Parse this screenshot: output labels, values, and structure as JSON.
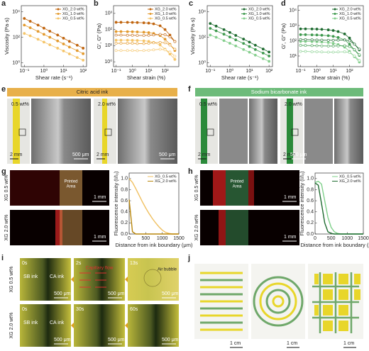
{
  "chart_data": [
    {
      "type": "line",
      "xscale": "log",
      "yscale": "log",
      "xlabel": "Shear rate (s⁻¹)",
      "ylabel": "Viscosity (Pa·s)",
      "legend": "upper right",
      "x": [
        0.1,
        0.2,
        0.5,
        1,
        2,
        5,
        10,
        20,
        50,
        100
      ],
      "xlim": [
        0.07,
        150
      ],
      "xticks": [
        {
          "value": 0.1,
          "label": "10⁻¹"
        },
        {
          "value": 1,
          "label": "10⁰"
        },
        {
          "value": 10,
          "label": "10¹"
        },
        {
          "value": 100,
          "label": "10²"
        }
      ],
      "ylim": [
        0.5,
        30000
      ],
      "yticks": [
        {
          "value": 1,
          "label": "10⁰"
        },
        {
          "value": 100,
          "label": "10²"
        },
        {
          "value": 10000,
          "label": "10⁴"
        }
      ],
      "series": [
        {
          "name": "XG_2.0 wt%",
          "color": "#c0650f",
          "marker": "filled",
          "values": [
            3000,
            1800,
            900,
            520,
            300,
            150,
            85,
            48,
            24,
            14
          ]
        },
        {
          "name": "XG_1.0 wt%",
          "color": "#e39a2e",
          "marker": "filled",
          "values": [
            900,
            560,
            290,
            170,
            100,
            52,
            30,
            17,
            9,
            5.2
          ]
        },
        {
          "name": "XG_0.5 wt%",
          "color": "#f5c56a",
          "marker": "filled",
          "values": [
            200,
            130,
            70,
            42,
            26,
            14,
            8.5,
            5,
            2.6,
            1.6
          ]
        }
      ]
    },
    {
      "type": "line",
      "xscale": "log",
      "yscale": "log",
      "xlabel": "Shear strain (%)",
      "ylabel": "G′, G″ (Pa)",
      "legend": "upper right",
      "x": [
        0.1,
        0.2,
        0.5,
        1,
        2,
        5,
        10,
        20,
        50,
        100,
        200,
        400
      ],
      "xlim": [
        0.07,
        700
      ],
      "xticks": [
        {
          "value": 0.1,
          "label": "10⁻¹"
        },
        {
          "value": 1,
          "label": "10⁰"
        },
        {
          "value": 10,
          "label": "10¹"
        },
        {
          "value": 100,
          "label": "10²"
        }
      ],
      "ylim": [
        0.5,
        3000
      ],
      "yticks": [
        {
          "value": 1,
          "label": "10⁰"
        },
        {
          "value": 10,
          "label": "10¹"
        },
        {
          "value": 100,
          "label": "10²"
        },
        {
          "value": 1000,
          "label": "10³"
        }
      ],
      "series": [
        {
          "name": "XG_2.0 wt%",
          "color": "#c0650f",
          "marker": "filled",
          "values": [
            280,
            280,
            278,
            275,
            270,
            262,
            250,
            225,
            170,
            100,
            45,
            18
          ]
        },
        {
          "name": "XG_1.0 wt%",
          "color": "#e39a2e",
          "marker": "filled",
          "values": [
            75,
            75,
            74,
            73,
            71,
            68,
            64,
            57,
            42,
            25,
            12,
            5
          ]
        },
        {
          "name": "XG_0.5 wt%",
          "color": "#f5c56a",
          "marker": "filled",
          "values": [
            22,
            22,
            22,
            21.5,
            21,
            20,
            18.5,
            16,
            11,
            6,
            3,
            1.4
          ]
        },
        {
          "color": "#c0650f",
          "marker": "open",
          "values": [
            45,
            45,
            44,
            44,
            43,
            43,
            44,
            46,
            50,
            48,
            35,
            18
          ]
        },
        {
          "color": "#e39a2e",
          "marker": "open",
          "values": [
            14,
            14,
            14,
            14,
            13.5,
            13.5,
            14,
            15,
            16,
            15,
            11,
            6
          ]
        },
        {
          "color": "#f5c56a",
          "marker": "open",
          "values": [
            5,
            5,
            5,
            5,
            4.9,
            5,
            5.2,
            5.5,
            6,
            5.5,
            4,
            2.2
          ]
        }
      ]
    },
    {
      "type": "line",
      "xscale": "log",
      "yscale": "log",
      "xlabel": "Shear rate (s⁻¹)",
      "ylabel": "Viscosity (Pa·s)",
      "legend": "upper right",
      "x": [
        0.1,
        0.2,
        0.5,
        1,
        2,
        5,
        10,
        20,
        50,
        100
      ],
      "xlim": [
        0.07,
        150
      ],
      "xticks": [
        {
          "value": 0.1,
          "label": "10⁻¹"
        },
        {
          "value": 1,
          "label": "10⁰"
        },
        {
          "value": 10,
          "label": "10¹"
        },
        {
          "value": 100,
          "label": "10²"
        }
      ],
      "ylim": [
        0.5,
        30000
      ],
      "yticks": [
        {
          "value": 1,
          "label": "10⁰"
        },
        {
          "value": 100,
          "label": "10²"
        },
        {
          "value": 10000,
          "label": "10⁴"
        }
      ],
      "series": [
        {
          "name": "XG_2.0 wt%",
          "color": "#1e6b30",
          "marker": "filled",
          "values": [
            1200,
            750,
            400,
            240,
            140,
            72,
            42,
            24,
            12,
            7
          ]
        },
        {
          "name": "XG_1.0 wt%",
          "color": "#3f9a4f",
          "marker": "filled",
          "values": [
            500,
            320,
            175,
            105,
            63,
            33,
            19,
            11,
            5.8,
            3.4
          ]
        },
        {
          "name": "XG_0.5 wt%",
          "color": "#86cf8e",
          "marker": "filled",
          "values": [
            150,
            100,
            55,
            34,
            21,
            11,
            6.8,
            4,
            2.1,
            1.3
          ]
        }
      ]
    },
    {
      "type": "line",
      "xscale": "log",
      "yscale": "log",
      "xlabel": "Shear strain (%)",
      "ylabel": "G′, G″ (Pa)",
      "legend": "upper right",
      "x": [
        0.1,
        0.2,
        0.5,
        1,
        2,
        5,
        10,
        20,
        50,
        100,
        200,
        400
      ],
      "xlim": [
        0.07,
        700
      ],
      "xticks": [
        {
          "value": 0.1,
          "label": "10⁻¹"
        },
        {
          "value": 1,
          "label": "10⁰"
        },
        {
          "value": 10,
          "label": "10¹"
        },
        {
          "value": 100,
          "label": "10²"
        }
      ],
      "ylim": [
        2,
        20000
      ],
      "yticks": [
        {
          "value": 10,
          "label": "10¹"
        },
        {
          "value": 100,
          "label": "10²"
        },
        {
          "value": 1000,
          "label": "10³"
        },
        {
          "value": 10000,
          "label": "10⁴"
        }
      ],
      "series": [
        {
          "name": "XG_2.0 wt%",
          "color": "#1e6b30",
          "marker": "filled",
          "values": [
            600,
            600,
            590,
            580,
            560,
            520,
            470,
            400,
            280,
            150,
            60,
            25
          ]
        },
        {
          "name": "XG_1.0 wt%",
          "color": "#3f9a4f",
          "marker": "filled",
          "values": [
            250,
            250,
            245,
            240,
            230,
            215,
            195,
            165,
            115,
            60,
            25,
            11
          ]
        },
        {
          "name": "XG_0.5 wt%",
          "color": "#86cf8e",
          "marker": "filled",
          "values": [
            90,
            90,
            88,
            86,
            82,
            76,
            68,
            57,
            38,
            20,
            9,
            4
          ]
        },
        {
          "color": "#1e6b30",
          "marker": "open",
          "values": [
            120,
            118,
            115,
            112,
            110,
            108,
            108,
            110,
            112,
            100,
            60,
            28
          ]
        },
        {
          "color": "#3f9a4f",
          "marker": "open",
          "values": [
            50,
            49,
            48,
            47,
            46,
            45,
            45,
            46,
            47,
            42,
            26,
            12
          ]
        },
        {
          "color": "#86cf8e",
          "marker": "open",
          "values": [
            20,
            20,
            19,
            19,
            18.5,
            18,
            18,
            18.5,
            19,
            17,
            10,
            5
          ]
        }
      ]
    },
    {
      "type": "line",
      "xlabel": "Distance from ink boundary (μm)",
      "ylabel": "Fluorescence intensity (I/I₀)",
      "legend": "upper right",
      "x": [
        0,
        100,
        200,
        300,
        400,
        500,
        600,
        700,
        800,
        900,
        1000,
        1100,
        1200,
        1300,
        1400,
        1500
      ],
      "xlim": [
        0,
        1500
      ],
      "xticks": [
        0,
        500,
        1000,
        1500
      ],
      "ylim": [
        0,
        1.1
      ],
      "yticks": [
        {
          "value": 0,
          "label": "0.0"
        },
        0.2,
        0.4,
        0.6,
        0.8,
        {
          "value": 1,
          "label": "1.0"
        }
      ],
      "series": [
        {
          "name": "XG_0.5 wt%",
          "color": "#f0c060",
          "marker": "none",
          "values": [
            1.0,
            0.93,
            0.82,
            0.7,
            0.58,
            0.47,
            0.37,
            0.28,
            0.2,
            0.13,
            0.07,
            0.03,
            0.01,
            0,
            0,
            0
          ]
        },
        {
          "name": "XG_2.0 wt%",
          "color": "#b8860b",
          "marker": "none",
          "values": [
            0.62,
            0.04,
            0,
            0,
            0,
            0,
            0,
            0,
            0,
            0,
            0,
            0,
            0,
            0,
            0,
            0
          ]
        }
      ]
    },
    {
      "type": "line",
      "xlabel": "Distance from ink boundary (μm)",
      "ylabel": "Fluorescence intensity (I/I₀)",
      "legend": "upper right",
      "x": [
        0,
        100,
        200,
        300,
        400,
        500,
        600,
        700,
        800,
        900,
        1000,
        1100,
        1200,
        1300,
        1400,
        1500
      ],
      "xlim": [
        0,
        1500
      ],
      "xticks": [
        0,
        500,
        1000,
        1500
      ],
      "ylim": [
        0,
        1.1
      ],
      "yticks": [
        {
          "value": 0,
          "label": "0.0"
        },
        0.2,
        0.4,
        0.6,
        0.8,
        {
          "value": 1,
          "label": "1.0"
        }
      ],
      "series": [
        {
          "name": "XG_0.5 wt%",
          "color": "#7fd08a",
          "marker": "none",
          "values": [
            0.93,
            0.95,
            0.9,
            0.6,
            0.3,
            0.12,
            0.04,
            0.01,
            0,
            0,
            0,
            0,
            0,
            0,
            0,
            0
          ]
        },
        {
          "name": "XG_2.0 wt%",
          "color": "#1e6b30",
          "marker": "none",
          "values": [
            0.92,
            0.88,
            0.55,
            0.2,
            0.04,
            0.01,
            0,
            0,
            0,
            0,
            0,
            0,
            0,
            0,
            0,
            0
          ]
        }
      ]
    }
  ],
  "panels": {
    "letters": [
      "a",
      "b",
      "c",
      "d",
      "e",
      "f",
      "g",
      "h",
      "i",
      "j"
    ],
    "e": {
      "title": "Citric acid ink",
      "samples": [
        "0.5 wt%",
        "2.0 wt%"
      ],
      "scale_photo": "2 mm",
      "scale_sem": "500 μm"
    },
    "f": {
      "title": "Sodium bicarbonate ink",
      "samples": [
        "0.5 wt%",
        "2.0 wt%"
      ],
      "scale_photo": "2 mm",
      "scale_sem": "500 μm"
    },
    "g": {
      "rows": [
        "XG 0.5 wt%",
        "XG 2.0 wt%"
      ],
      "area": [
        "Printed",
        "Area"
      ],
      "scale": "1 mm"
    },
    "h": {
      "rows": [
        "XG 0.5 wt%",
        "XG 2.0 wt%"
      ],
      "area": [
        "Printed",
        "Area"
      ],
      "scale": "1 mm"
    },
    "i": {
      "rows": [
        "XG 0.5 wt%",
        "XG 2.0 wt%"
      ],
      "times": [
        [
          "0s",
          "2s",
          "13s"
        ],
        [
          "0s",
          "30s",
          "60s"
        ]
      ],
      "inks": [
        "SB ink",
        "CA ink"
      ],
      "flow": "Capillary flow",
      "bubble": "Air bubble",
      "scale": "500 μm"
    },
    "j": {
      "scale": "1 cm"
    }
  }
}
